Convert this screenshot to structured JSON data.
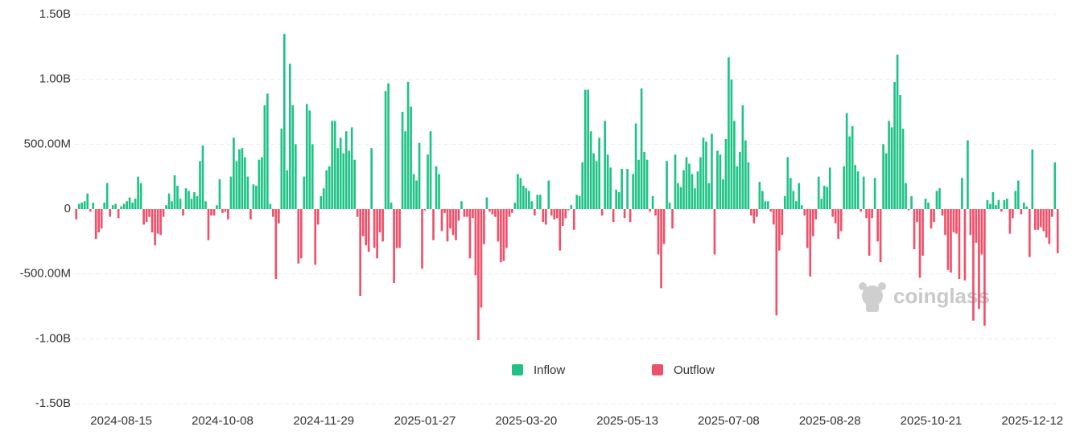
{
  "chart_data": {
    "type": "bar",
    "watermark": "coinglass",
    "categories": [
      null,
      null,
      null,
      null,
      null,
      null,
      null,
      null,
      null,
      null,
      null,
      null,
      null,
      null,
      null,
      null,
      "2024-08-15",
      null,
      null,
      null,
      null,
      null,
      null,
      null,
      null,
      null,
      null,
      null,
      null,
      null,
      null,
      null,
      null,
      null,
      null,
      null,
      null,
      null,
      null,
      null,
      null,
      null,
      null,
      null,
      null,
      null,
      null,
      null,
      null,
      null,
      null,
      null,
      "2024-10-08",
      null,
      null,
      null,
      null,
      null,
      null,
      null,
      null,
      null,
      null,
      null,
      null,
      null,
      null,
      null,
      null,
      null,
      null,
      null,
      null,
      null,
      null,
      null,
      null,
      null,
      null,
      null,
      null,
      null,
      null,
      null,
      null,
      null,
      null,
      null,
      "2024-11-29",
      null,
      null,
      null,
      null,
      null,
      null,
      null,
      null,
      null,
      null,
      null,
      null,
      null,
      null,
      null,
      null,
      null,
      null,
      null,
      null,
      null,
      null,
      null,
      null,
      null,
      null,
      null,
      null,
      null,
      null,
      null,
      null,
      null,
      null,
      null,
      "2025-01-27",
      null,
      null,
      null,
      null,
      null,
      null,
      null,
      null,
      null,
      null,
      null,
      null,
      null,
      null,
      null,
      null,
      null,
      null,
      null,
      null,
      null,
      null,
      null,
      null,
      null,
      null,
      null,
      null,
      null,
      null,
      null,
      null,
      null,
      null,
      null,
      "2025-03-20",
      null,
      null,
      null,
      null,
      null,
      null,
      null,
      null,
      null,
      null,
      null,
      null,
      null,
      null,
      null,
      null,
      null,
      null,
      null,
      null,
      null,
      null,
      null,
      null,
      null,
      null,
      null,
      null,
      null,
      null,
      null,
      null,
      null,
      null,
      null,
      "2025-05-13",
      null,
      null,
      null,
      null,
      null,
      null,
      null,
      null,
      null,
      null,
      null,
      null,
      null,
      null,
      null,
      null,
      null,
      null,
      null,
      null,
      null,
      null,
      null,
      null,
      null,
      null,
      null,
      null,
      null,
      null,
      null,
      null,
      null,
      null,
      null,
      "2025-07-08",
      null,
      null,
      null,
      null,
      null,
      null,
      null,
      null,
      null,
      null,
      null,
      null,
      null,
      null,
      null,
      null,
      null,
      null,
      null,
      null,
      null,
      null,
      null,
      null,
      null,
      null,
      null,
      null,
      null,
      null,
      null,
      null,
      null,
      null,
      null,
      "2025-08-28",
      null,
      null,
      null,
      null,
      null,
      null,
      null,
      null,
      null,
      null,
      null,
      null,
      null,
      null,
      null,
      null,
      null,
      null,
      null,
      null,
      null,
      null,
      null,
      null,
      null,
      null,
      null,
      null,
      null,
      null,
      null,
      null,
      null,
      null,
      null,
      "2025-10-21",
      null,
      null,
      null,
      null,
      null,
      null,
      null,
      null,
      null,
      null,
      null,
      null,
      null,
      null,
      null,
      null,
      null,
      null,
      null,
      null,
      null,
      null,
      null,
      null,
      null,
      null,
      null,
      null,
      null,
      null,
      null,
      null,
      null,
      null,
      null,
      "2025-12-12",
      null,
      null,
      null,
      null,
      null,
      null,
      null,
      null,
      null
    ],
    "series": [
      {
        "name": "Inflow",
        "color": "#1fc386",
        "values": [
          null,
          40000000.0,
          50000000.0,
          60000000.0,
          120000000.0,
          null,
          50000000.0,
          null,
          null,
          null,
          50000000.0,
          200000000.0,
          null,
          30000000.0,
          40000000.0,
          null,
          20000000.0,
          40000000.0,
          60000000.0,
          90000000.0,
          50000000.0,
          80000000.0,
          250000000.0,
          200000000.0,
          null,
          null,
          null,
          null,
          null,
          null,
          null,
          null,
          30000000.0,
          120000000.0,
          60000000.0,
          260000000.0,
          180000000.0,
          80000000.0,
          null,
          160000000.0,
          140000000.0,
          80000000.0,
          130000000.0,
          100000000.0,
          370000000.0,
          490000000.0,
          60000000.0,
          null,
          null,
          null,
          30000000.0,
          230000000.0,
          null,
          null,
          null,
          250000000.0,
          550000000.0,
          370000000.0,
          460000000.0,
          470000000.0,
          400000000.0,
          250000000.0,
          null,
          190000000.0,
          180000000.0,
          380000000.0,
          400000000.0,
          800000000.0,
          890000000.0,
          40000000.0,
          null,
          null,
          null,
          620000000.0,
          1350000000.0,
          300000000.0,
          1120000000.0,
          800000000.0,
          500000000.0,
          null,
          null,
          250000000.0,
          810000000.0,
          760000000.0,
          500000000.0,
          null,
          null,
          100000000.0,
          160000000.0,
          300000000.0,
          330000000.0,
          680000000.0,
          680000000.0,
          470000000.0,
          550000000.0,
          430000000.0,
          600000000.0,
          450000000.0,
          630000000.0,
          380000000.0,
          null,
          null,
          null,
          null,
          null,
          470000000.0,
          null,
          null,
          null,
          null,
          910000000.0,
          970000000.0,
          50000000.0,
          null,
          null,
          null,
          750000000.0,
          600000000.0,
          980000000.0,
          790000000.0,
          270000000.0,
          220000000.0,
          510000000.0,
          null,
          null,
          420000000.0,
          600000000.0,
          null,
          330000000.0,
          270000000.0,
          null,
          null,
          null,
          null,
          null,
          null,
          null,
          60000000.0,
          null,
          null,
          null,
          null,
          null,
          null,
          null,
          null,
          90000000.0,
          null,
          null,
          null,
          null,
          null,
          null,
          null,
          null,
          null,
          50000000.0,
          270000000.0,
          240000000.0,
          180000000.0,
          160000000.0,
          140000000.0,
          60000000.0,
          null,
          110000000.0,
          110000000.0,
          null,
          null,
          220000000.0,
          null,
          null,
          null,
          null,
          null,
          null,
          null,
          30000000.0,
          null,
          110000000.0,
          100000000.0,
          360000000.0,
          920000000.0,
          920000000.0,
          600000000.0,
          430000000.0,
          370000000.0,
          550000000.0,
          null,
          680000000.0,
          420000000.0,
          320000000.0,
          null,
          150000000.0,
          130000000.0,
          310000000.0,
          null,
          310000000.0,
          null,
          270000000.0,
          660000000.0,
          380000000.0,
          930000000.0,
          440000000.0,
          380000000.0,
          null,
          100000000.0,
          null,
          null,
          null,
          null,
          370000000.0,
          50000000.0,
          null,
          420000000.0,
          200000000.0,
          170000000.0,
          300000000.0,
          400000000.0,
          350000000.0,
          270000000.0,
          160000000.0,
          290000000.0,
          400000000.0,
          550000000.0,
          520000000.0,
          200000000.0,
          580000000.0,
          null,
          450000000.0,
          420000000.0,
          230000000.0,
          540000000.0,
          1170000000.0,
          1000000000.0,
          680000000.0,
          330000000.0,
          440000000.0,
          800000000.0,
          530000000.0,
          360000000.0,
          null,
          null,
          null,
          210000000.0,
          140000000.0,
          60000000.0,
          60000000.0,
          null,
          null,
          null,
          null,
          null,
          100000000.0,
          400000000.0,
          240000000.0,
          140000000.0,
          60000000.0,
          200000000.0,
          30000000.0,
          null,
          null,
          null,
          null,
          null,
          250000000.0,
          80000000.0,
          180000000.0,
          170000000.0,
          320000000.0,
          null,
          null,
          null,
          null,
          330000000.0,
          740000000.0,
          560000000.0,
          640000000.0,
          340000000.0,
          290000000.0,
          null,
          250000000.0,
          null,
          null,
          null,
          240000000.0,
          null,
          null,
          500000000.0,
          430000000.0,
          680000000.0,
          630000000.0,
          980000000.0,
          1190000000.0,
          880000000.0,
          620000000.0,
          200000000.0,
          null,
          100000000.0,
          null,
          null,
          null,
          null,
          80000000.0,
          50000000.0,
          null,
          null,
          140000000.0,
          160000000.0,
          null,
          null,
          null,
          null,
          null,
          null,
          null,
          240000000.0,
          null,
          530000000.0,
          null,
          null,
          null,
          null,
          null,
          null,
          70000000.0,
          40000000.0,
          130000000.0,
          30000000.0,
          70000000.0,
          null,
          70000000.0,
          80000000.0,
          null,
          null,
          140000000.0,
          220000000.0,
          null,
          50000000.0,
          20000000.0,
          null,
          460000000.0,
          null,
          null,
          null,
          null,
          null,
          null,
          null,
          360000000.0,
          null
        ]
      },
      {
        "name": "Outflow",
        "color": "#f0506a",
        "values": [
          -80000000.0,
          null,
          null,
          null,
          null,
          -20000000.0,
          null,
          -230000000.0,
          -180000000.0,
          -150000000.0,
          null,
          null,
          -60000000.0,
          null,
          null,
          -70000000.0,
          null,
          null,
          null,
          null,
          null,
          null,
          null,
          null,
          -120000000.0,
          -100000000.0,
          -60000000.0,
          -180000000.0,
          -280000000.0,
          -190000000.0,
          -200000000.0,
          -60000000.0,
          null,
          null,
          null,
          null,
          null,
          null,
          -50000000.0,
          null,
          null,
          null,
          null,
          null,
          null,
          null,
          null,
          -240000000.0,
          -50000000.0,
          -50000000.0,
          null,
          null,
          -30000000.0,
          -20000000.0,
          -80000000.0,
          null,
          null,
          null,
          null,
          null,
          null,
          null,
          -80000000.0,
          null,
          null,
          null,
          null,
          null,
          null,
          null,
          -60000000.0,
          -540000000.0,
          -110000000.0,
          null,
          null,
          null,
          null,
          null,
          null,
          -420000000.0,
          -380000000.0,
          null,
          null,
          null,
          null,
          -430000000.0,
          -120000000.0,
          null,
          null,
          null,
          null,
          null,
          null,
          null,
          null,
          null,
          null,
          null,
          null,
          null,
          -60000000.0,
          -670000000.0,
          -210000000.0,
          -280000000.0,
          -330000000.0,
          null,
          -300000000.0,
          -380000000.0,
          -180000000.0,
          -250000000.0,
          null,
          null,
          null,
          -570000000.0,
          -300000000.0,
          -300000000.0,
          null,
          null,
          null,
          null,
          null,
          null,
          null,
          -460000000.0,
          -10000000.0,
          null,
          null,
          -240000000.0,
          null,
          null,
          -170000000.0,
          -30000000.0,
          -250000000.0,
          -150000000.0,
          -200000000.0,
          -240000000.0,
          -90000000.0,
          null,
          -60000000.0,
          -60000000.0,
          -380000000.0,
          -70000000.0,
          -510000000.0,
          -1010000000.0,
          -760000000.0,
          -270000000.0,
          null,
          -20000000.0,
          -40000000.0,
          -60000000.0,
          -250000000.0,
          -410000000.0,
          -400000000.0,
          -300000000.0,
          -60000000.0,
          -30000000.0,
          null,
          null,
          null,
          null,
          null,
          null,
          null,
          -50000000.0,
          null,
          null,
          -100000000.0,
          -120000000.0,
          null,
          -50000000.0,
          -80000000.0,
          -70000000.0,
          -320000000.0,
          -130000000.0,
          -70000000.0,
          -10000000.0,
          null,
          -160000000.0,
          null,
          null,
          null,
          null,
          null,
          null,
          null,
          null,
          null,
          -50000000.0,
          null,
          null,
          null,
          -100000000.0,
          null,
          null,
          null,
          -70000000.0,
          null,
          -100000000.0,
          null,
          null,
          null,
          null,
          null,
          null,
          -20000000.0,
          null,
          -50000000.0,
          -350000000.0,
          -610000000.0,
          -270000000.0,
          null,
          null,
          -150000000.0,
          null,
          null,
          null,
          null,
          null,
          null,
          null,
          null,
          null,
          null,
          null,
          null,
          null,
          null,
          -350000000.0,
          null,
          null,
          null,
          null,
          null,
          null,
          null,
          null,
          null,
          null,
          null,
          null,
          -50000000.0,
          -110000000.0,
          -60000000.0,
          null,
          null,
          null,
          null,
          -20000000.0,
          -120000000.0,
          -820000000.0,
          -320000000.0,
          -200000000.0,
          null,
          null,
          null,
          null,
          null,
          null,
          null,
          -50000000.0,
          -300000000.0,
          -520000000.0,
          -210000000.0,
          -80000000.0,
          null,
          null,
          null,
          null,
          null,
          -60000000.0,
          -110000000.0,
          -230000000.0,
          -170000000.0,
          null,
          null,
          null,
          null,
          null,
          null,
          -20000000.0,
          null,
          -70000000.0,
          -360000000.0,
          -70000000.0,
          null,
          -250000000.0,
          -410000000.0,
          null,
          null,
          null,
          null,
          null,
          null,
          null,
          null,
          null,
          -10000000.0,
          null,
          -310000000.0,
          -100000000.0,
          -530000000.0,
          -360000000.0,
          null,
          null,
          -150000000.0,
          -100000000.0,
          null,
          null,
          -50000000.0,
          -200000000.0,
          -470000000.0,
          -490000000.0,
          -180000000.0,
          -190000000.0,
          -540000000.0,
          null,
          -550000000.0,
          null,
          -200000000.0,
          -860000000.0,
          -260000000.0,
          -770000000.0,
          -350000000.0,
          -900000000.0,
          null,
          null,
          null,
          null,
          null,
          -20000000.0,
          null,
          null,
          -190000000.0,
          -70000000.0,
          null,
          null,
          -40000000.0,
          null,
          null,
          -370000000.0,
          null,
          -160000000.0,
          -160000000.0,
          -140000000.0,
          -170000000.0,
          -220000000.0,
          -270000000.0,
          -60000000.0,
          null,
          -340000000.0
        ]
      }
    ],
    "ylim": [
      -1500000000,
      1500000000
    ],
    "yticks": [
      {
        "value": -1500000000,
        "label": "-1.50B"
      },
      {
        "value": -1000000000,
        "label": "-1.00B"
      },
      {
        "value": -500000000,
        "label": "-500.00M"
      },
      0,
      {
        "value": 500000000,
        "label": "500.00M"
      },
      {
        "value": 1000000000,
        "label": "1.00B"
      },
      {
        "value": 1500000000,
        "label": "1.50B"
      }
    ],
    "grid": true
  }
}
